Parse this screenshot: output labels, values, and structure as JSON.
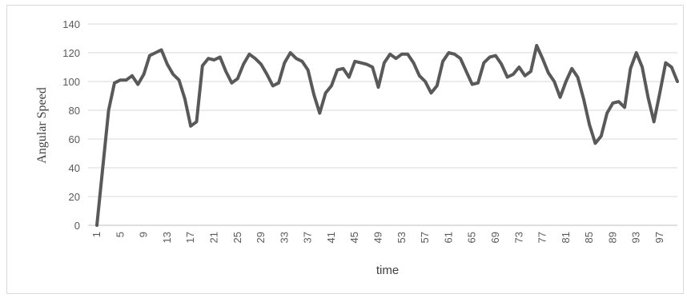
{
  "chart_data": {
    "type": "line",
    "title": "",
    "xlabel": "time",
    "ylabel": "Angular Speed",
    "ylim": [
      0,
      140
    ],
    "yticks": [
      0,
      20,
      40,
      60,
      80,
      100,
      120,
      140
    ],
    "xticks": [
      1,
      5,
      9,
      13,
      17,
      21,
      25,
      29,
      33,
      37,
      41,
      45,
      49,
      53,
      57,
      61,
      65,
      69,
      73,
      77,
      81,
      85,
      89,
      93,
      97
    ],
    "xlim": [
      1,
      100
    ],
    "grid": true,
    "legend": "none",
    "line_color": "#595959",
    "x": [
      1,
      2,
      3,
      4,
      5,
      6,
      7,
      8,
      9,
      10,
      11,
      12,
      13,
      14,
      15,
      16,
      17,
      18,
      19,
      20,
      21,
      22,
      23,
      24,
      25,
      26,
      27,
      28,
      29,
      30,
      31,
      32,
      33,
      34,
      35,
      36,
      37,
      38,
      39,
      40,
      41,
      42,
      43,
      44,
      45,
      46,
      47,
      48,
      49,
      50,
      51,
      52,
      53,
      54,
      55,
      56,
      57,
      58,
      59,
      60,
      61,
      62,
      63,
      64,
      65,
      66,
      67,
      68,
      69,
      70,
      71,
      72,
      73,
      74,
      75,
      76,
      77,
      78,
      79,
      80,
      81,
      82,
      83,
      84,
      85,
      86,
      87,
      88,
      89,
      90,
      91,
      92,
      93,
      94,
      95,
      96,
      97,
      98,
      99,
      100
    ],
    "values": [
      0,
      40,
      80,
      99,
      101,
      101,
      104,
      98,
      105,
      118,
      120,
      122,
      112,
      105,
      101,
      88,
      69,
      72,
      111,
      116,
      115,
      117,
      107,
      99,
      102,
      112,
      119,
      116,
      112,
      105,
      97,
      99,
      113,
      120,
      116,
      114,
      108,
      91,
      78,
      92,
      97,
      108,
      109,
      103,
      114,
      113,
      112,
      110,
      96,
      113,
      119,
      116,
      119,
      119,
      113,
      104,
      100,
      92,
      97,
      114,
      120,
      119,
      116,
      107,
      98,
      99,
      113,
      117,
      118,
      112,
      103,
      105,
      110,
      104,
      107,
      125,
      116,
      106,
      100,
      89,
      100,
      109,
      103,
      88,
      70,
      57,
      62,
      78,
      85,
      86,
      82,
      109,
      120,
      110,
      89,
      72,
      92,
      113,
      110,
      100
    ]
  }
}
